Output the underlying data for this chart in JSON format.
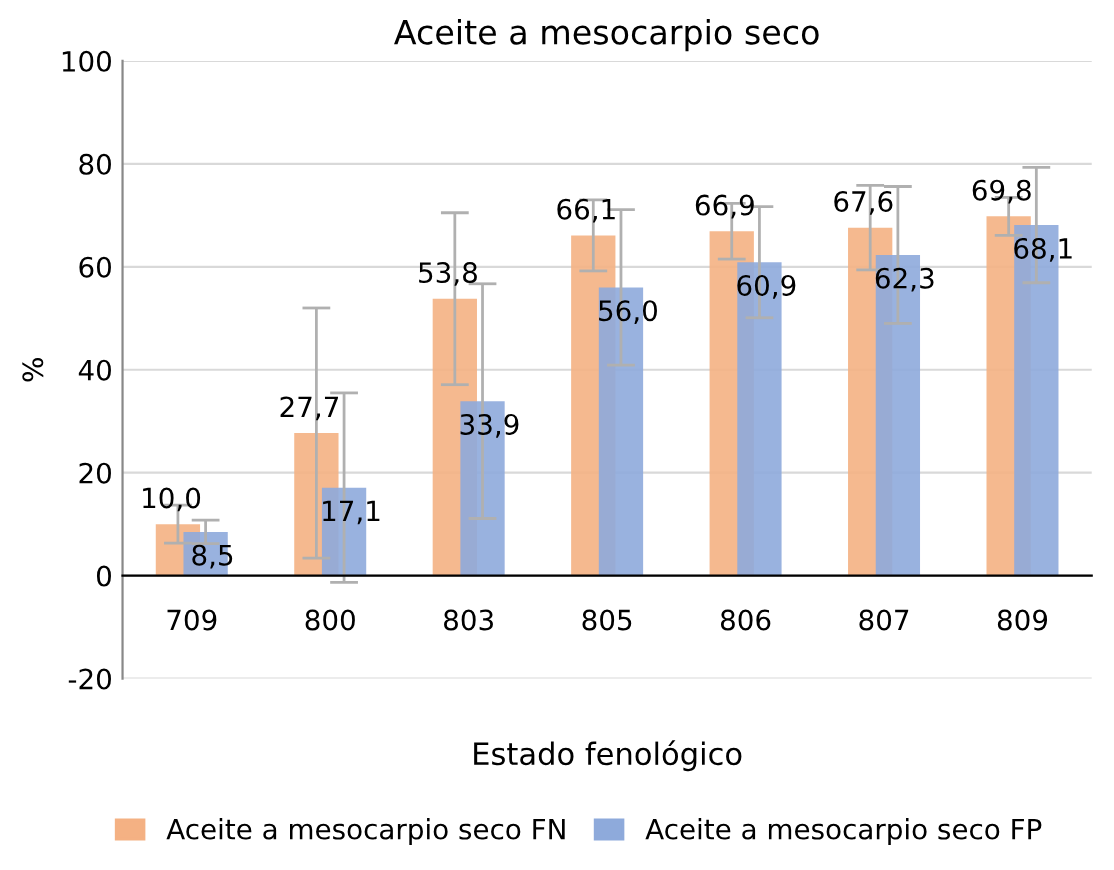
{
  "chart_data": {
    "type": "bar",
    "title": "Aceite a mesocarpio seco",
    "xlabel": "Estado fenológico",
    "ylabel": "%",
    "categories": [
      "709",
      "800",
      "803",
      "805",
      "806",
      "807",
      "809"
    ],
    "series": [
      {
        "name": "Aceite a mesocarpio seco FN",
        "color": "#f4b183",
        "values": [
          10.0,
          27.7,
          53.8,
          66.1,
          66.9,
          67.6,
          69.8
        ],
        "value_labels": [
          "10,0",
          "27,7",
          "53,8",
          "66,1",
          "66,9",
          "67,6",
          "69,8"
        ],
        "errors": [
          3.7,
          24.3,
          16.7,
          6.9,
          5.4,
          8.2,
          3.7
        ]
      },
      {
        "name": "Aceite a mesocarpio seco FP",
        "color": "#8eaadb",
        "values": [
          8.5,
          17.1,
          33.9,
          56.0,
          60.9,
          62.3,
          68.1
        ],
        "value_labels": [
          "8,5",
          "17,1",
          "33,9",
          "56,0",
          "60,9",
          "62,3",
          "68,1"
        ],
        "errors": [
          2.3,
          18.4,
          22.8,
          15.1,
          10.8,
          13.3,
          11.2
        ]
      }
    ],
    "ylim": [
      -20,
      100
    ],
    "yticks": [
      -20,
      0,
      20,
      40,
      60,
      80,
      100
    ],
    "grid": "y",
    "legend": "bottom"
  }
}
